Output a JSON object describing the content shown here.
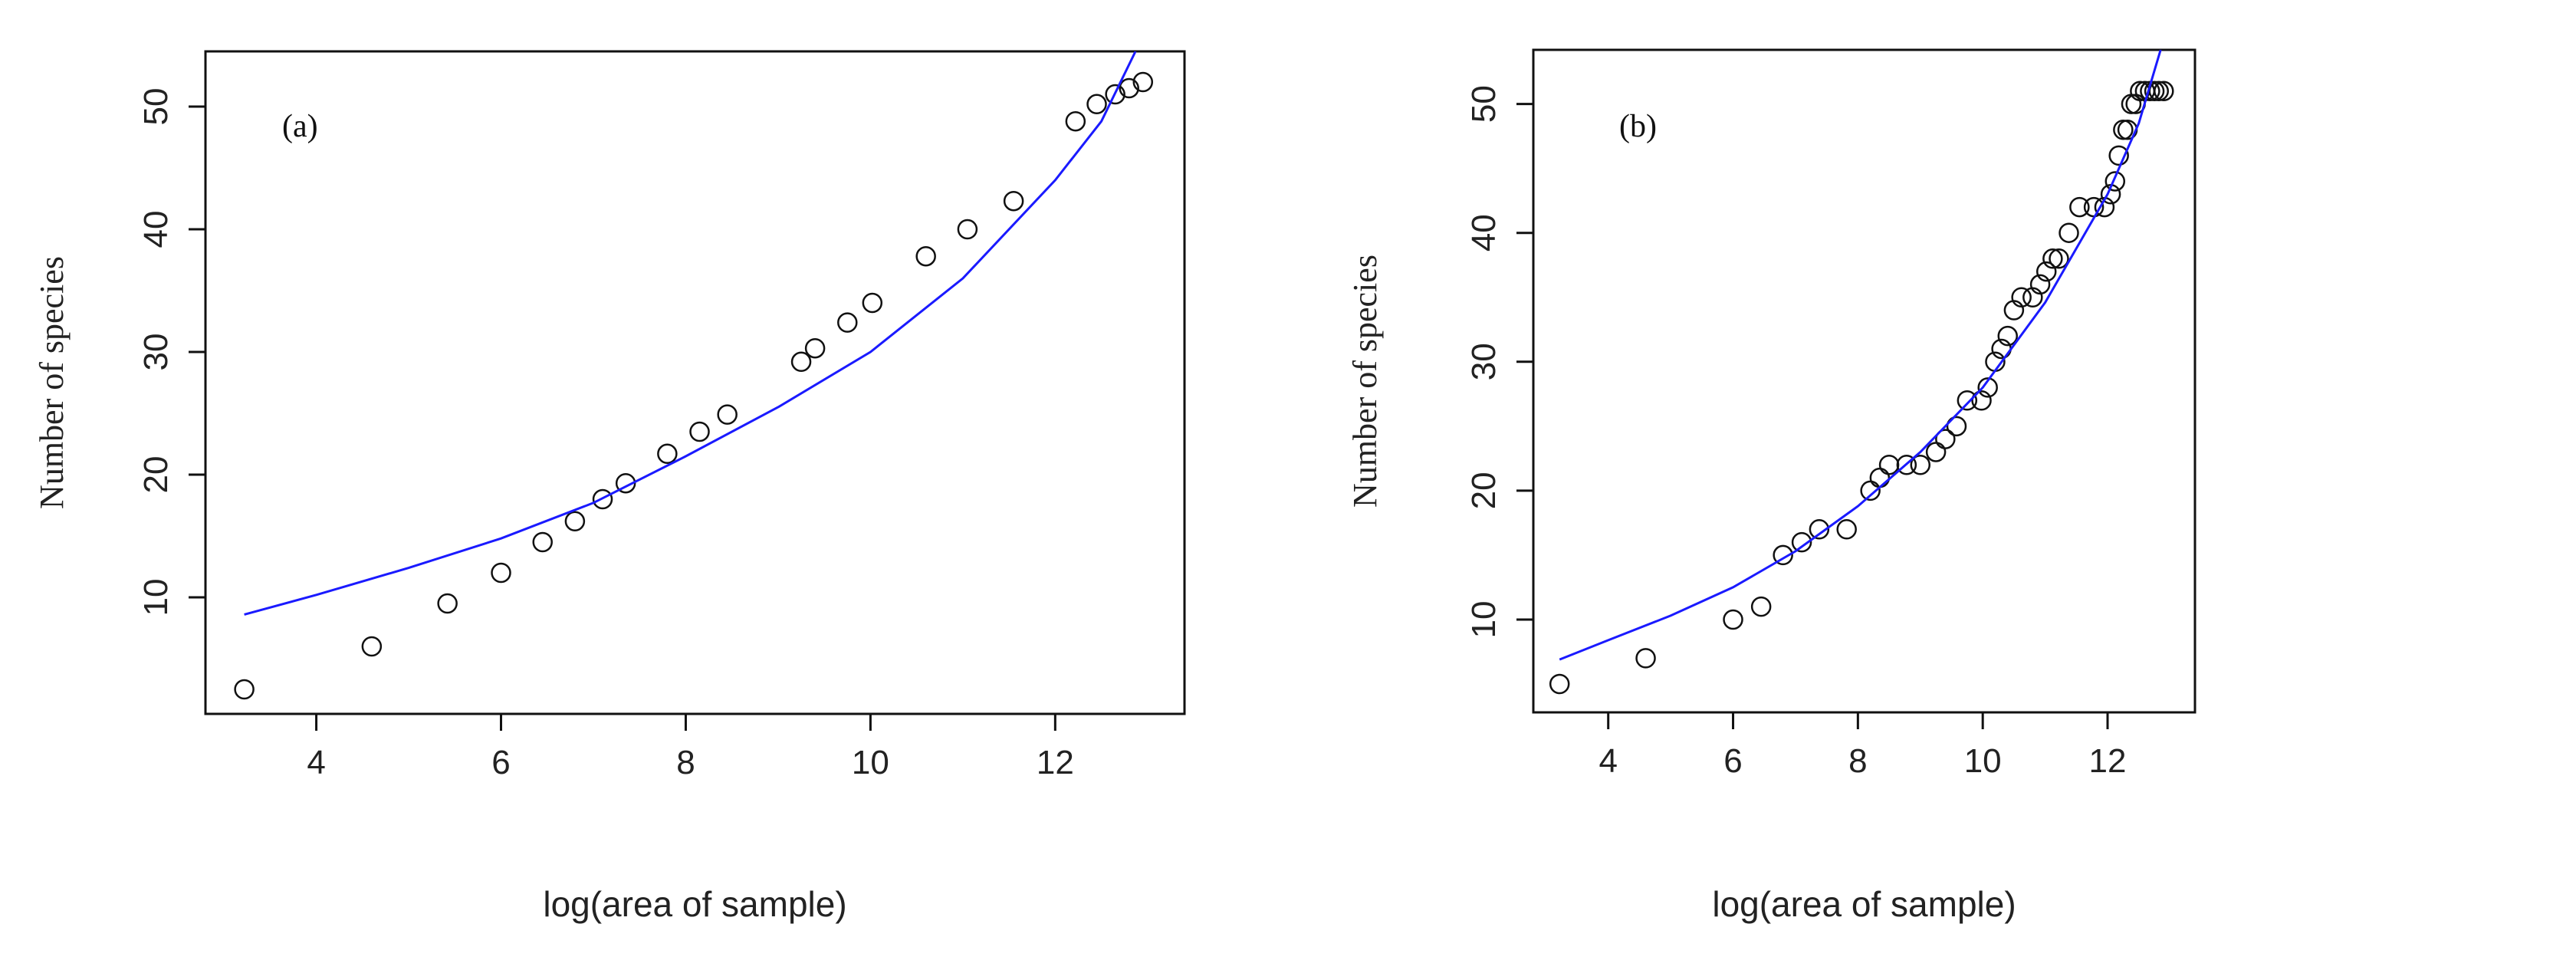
{
  "colors": {
    "fit_line": "#1a1aff",
    "points": "#111111",
    "frame": "#111111"
  },
  "chart_data": [
    {
      "type": "scatter",
      "panel_label": "(a)",
      "xlabel": "log(area of sample)",
      "ylabel": "Number of species",
      "xlim": [
        2.8,
        13.4
      ],
      "ylim": [
        0.5,
        54.5
      ],
      "xticks": [
        4,
        6,
        8,
        10,
        12
      ],
      "yticks": [
        10,
        20,
        30,
        40,
        50
      ],
      "tick_labels_x": [
        "4",
        "6",
        "8",
        "10",
        "12"
      ],
      "tick_labels_y": [
        "10",
        "20",
        "30",
        "40",
        "50"
      ],
      "grid": false,
      "series": [
        {
          "kind": "points",
          "x": [
            3.22,
            4.6,
            5.42,
            6.0,
            6.45,
            6.8,
            7.1,
            7.35,
            7.8,
            8.15,
            8.45,
            9.25,
            9.4,
            9.75,
            10.02,
            10.6,
            11.05,
            11.55,
            12.22,
            12.45,
            12.65,
            12.8,
            12.95
          ],
          "y": [
            2.5,
            6.0,
            9.5,
            12.0,
            14.5,
            16.2,
            18.0,
            19.3,
            21.7,
            23.5,
            24.9,
            29.2,
            30.3,
            32.4,
            34.0,
            37.8,
            40.0,
            42.3,
            48.8,
            50.2,
            51.0,
            51.5,
            52.0
          ]
        },
        {
          "kind": "fit-line",
          "x": [
            3.22,
            4.0,
            5.0,
            6.0,
            7.0,
            8.0,
            9.0,
            10.0,
            11.0,
            12.0,
            12.5,
            12.87
          ],
          "y": [
            8.6,
            10.2,
            12.4,
            14.8,
            17.7,
            21.5,
            25.5,
            30.0,
            36.0,
            44.0,
            48.8,
            54.5
          ]
        }
      ]
    },
    {
      "type": "scatter",
      "panel_label": "(b)",
      "xlabel": "log(area of sample)",
      "ylabel": "Number of species",
      "xlim": [
        2.8,
        13.4
      ],
      "ylim": [
        2.8,
        54.2
      ],
      "xticks": [
        4,
        6,
        8,
        10,
        12
      ],
      "yticks": [
        10,
        20,
        30,
        40,
        50
      ],
      "tick_labels_x": [
        "4",
        "6",
        "8",
        "10",
        "12"
      ],
      "tick_labels_y": [
        "10",
        "20",
        "30",
        "40",
        "50"
      ],
      "grid": false,
      "series": [
        {
          "kind": "points",
          "x": [
            3.22,
            4.6,
            6.0,
            6.45,
            6.8,
            7.1,
            7.38,
            7.82,
            8.2,
            8.35,
            8.5,
            8.78,
            9.0,
            9.25,
            9.4,
            9.58,
            9.75,
            9.98,
            10.08,
            10.2,
            10.3,
            10.4,
            10.5,
            10.62,
            10.8,
            10.92,
            11.02,
            11.12,
            11.22,
            11.38,
            11.55,
            11.78,
            11.95,
            12.05,
            12.12,
            12.18,
            12.25,
            12.32,
            12.38,
            12.45,
            12.52,
            12.6,
            12.68,
            12.75,
            12.82,
            12.9
          ],
          "y": [
            5,
            7,
            10,
            11,
            15,
            16,
            17,
            17,
            20,
            21,
            22,
            22,
            22,
            23,
            24,
            25,
            27,
            27,
            28,
            30,
            31,
            32,
            34,
            35,
            35,
            36,
            37,
            38,
            38,
            40,
            42,
            42,
            42,
            43,
            44,
            46,
            48,
            48,
            50,
            50,
            51,
            51,
            51,
            51,
            51,
            51
          ]
        },
        {
          "kind": "fit-line",
          "x": [
            3.22,
            4.0,
            5.0,
            6.0,
            7.0,
            8.0,
            9.0,
            10.0,
            11.0,
            12.0,
            12.5,
            12.85
          ],
          "y": [
            6.9,
            8.4,
            10.3,
            12.5,
            15.3,
            18.8,
            23.0,
            28.0,
            34.6,
            43.0,
            48.5,
            54.2
          ]
        }
      ]
    }
  ]
}
